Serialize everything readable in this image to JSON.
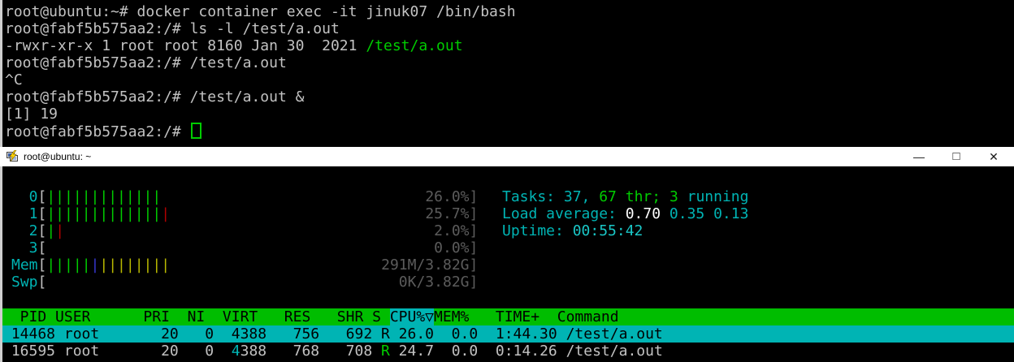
{
  "palette": {
    "fg": "#c2c2c2",
    "green": "#00cc00",
    "cyan": "#00b4b4",
    "cyan_bright": "#1ac7c7",
    "white": "#ffffff",
    "gray": "#5c5c5c",
    "red": "#b00000",
    "blue": "#3636cc",
    "yellow": "#b8b800",
    "header_bg": "#00bd00",
    "selection_bg": "#00b4b4",
    "titlebar_bg": "#ffffff",
    "titlebar_fg": "#000000"
  },
  "top_terminal": {
    "lines": [
      [
        {
          "t": "root@ubuntu:~# docker container exec -it jinuk07 /bin/bash",
          "c": "fg"
        }
      ],
      [
        {
          "t": "root@fabf5b575aa2:/# ls -l /test/a.out",
          "c": "fg"
        }
      ],
      [
        {
          "t": "-rwxr-xr-x 1 root root 8160 Jan 30  2021 ",
          "c": "fg"
        },
        {
          "t": "/test/a.out",
          "c": "green"
        }
      ],
      [
        {
          "t": "root@fabf5b575aa2:/# /test/a.out",
          "c": "fg"
        }
      ],
      [
        {
          "t": "^C",
          "c": "fg"
        }
      ],
      [
        {
          "t": "root@fabf5b575aa2:/# /test/a.out &",
          "c": "fg"
        }
      ],
      [
        {
          "t": "[1] 19",
          "c": "fg"
        }
      ],
      [
        {
          "t": "root@fabf5b575aa2:/# ",
          "c": "fg"
        },
        {
          "t": "",
          "c": "green",
          "cursor": true
        }
      ]
    ]
  },
  "window": {
    "title": "root@ubuntu: ~",
    "icon": "putty-icon",
    "controls": {
      "minimize": "—",
      "maximize": "□",
      "close": "✕"
    }
  },
  "htop": {
    "meters": [
      {
        "name": "cpu0",
        "label": "0",
        "bars": [
          {
            "n": 13,
            "c": "green"
          }
        ],
        "value": "26.0%"
      },
      {
        "name": "cpu1",
        "label": "1",
        "bars": [
          {
            "n": 13,
            "c": "green"
          },
          {
            "n": 1,
            "c": "red"
          }
        ],
        "value": "25.7%"
      },
      {
        "name": "cpu2",
        "label": "2",
        "bars": [
          {
            "n": 1,
            "c": "green"
          },
          {
            "n": 1,
            "c": "red"
          }
        ],
        "value": "2.0%"
      },
      {
        "name": "cpu3",
        "label": "3",
        "bars": [],
        "value": "0.0%"
      },
      {
        "name": "mem",
        "label": "Mem",
        "bars": [
          {
            "n": 5,
            "c": "green"
          },
          {
            "n": 1,
            "c": "blue"
          },
          {
            "n": 8,
            "c": "yellow"
          }
        ],
        "value": "291M/3.82G"
      },
      {
        "name": "swp",
        "label": "Swp",
        "bars": [],
        "value": "0K/3.82G"
      }
    ],
    "summary": [
      {
        "name": "tasks-line",
        "segments": [
          {
            "t": "Tasks: ",
            "c": "cyan"
          },
          {
            "t": "37, ",
            "c": "cyan"
          },
          {
            "t": "67 thr",
            "c": "green"
          },
          {
            "t": "; ",
            "c": "green"
          },
          {
            "t": "3 ",
            "c": "green"
          },
          {
            "t": "running",
            "c": "cyan"
          }
        ]
      },
      {
        "name": "load-line",
        "segments": [
          {
            "t": "Load average: ",
            "c": "cyan"
          },
          {
            "t": "0.70 ",
            "c": "white"
          },
          {
            "t": "0.35 0.13",
            "c": "cyan"
          }
        ]
      },
      {
        "name": "uptime-line",
        "segments": [
          {
            "t": "Uptime: ",
            "c": "cyan"
          },
          {
            "t": "00:55:42",
            "c": "bcyan"
          }
        ]
      }
    ],
    "table": {
      "header_segments": [
        {
          "t": "  PID USER      PRI  NI  VIRT   RES   SHR S ",
          "c": "black"
        },
        {
          "t": "CPU%▽",
          "c": "black",
          "bg": "sel"
        },
        {
          "t": "MEM%   TIME+  Command",
          "c": "black"
        }
      ],
      "rows": [
        {
          "selected": true,
          "segments": [
            {
              "t": " 14468 root       20   0  4388   756   692 R 26.0  0.0  1:44.30 /test/a.out",
              "c": "black"
            }
          ]
        },
        {
          "selected": false,
          "segments": [
            {
              "t": " 16595 root       20   0  ",
              "c": "fg"
            },
            {
              "t": "4",
              "c": "cyan"
            },
            {
              "t": "388   768   708 ",
              "c": "fg"
            },
            {
              "t": "R",
              "c": "green"
            },
            {
              "t": " 24.7  0.0  0:14.26 /test/a.out",
              "c": "fg"
            }
          ]
        }
      ]
    }
  }
}
